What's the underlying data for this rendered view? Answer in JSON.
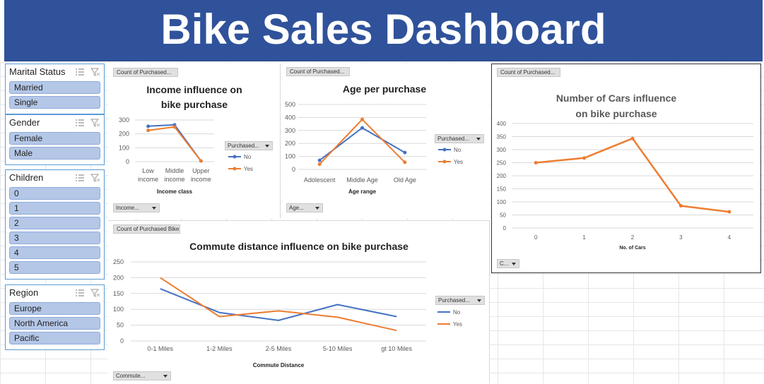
{
  "header": {
    "title": "Bike Sales Dashboard"
  },
  "slicers": [
    {
      "title": "Marital Status",
      "items": [
        "Married",
        "Single"
      ]
    },
    {
      "title": "Gender",
      "items": [
        "Female",
        "Male"
      ]
    },
    {
      "title": "Children",
      "items": [
        "0",
        "1",
        "2",
        "3",
        "4",
        "5"
      ]
    },
    {
      "title": "Region",
      "items": [
        "Europe",
        "North America",
        "Pacific"
      ]
    }
  ],
  "colors": {
    "header": "#30529b",
    "no": "#4472c4",
    "yes": "#ed7d31",
    "slicer_item": "#b4c7e7"
  },
  "charts": {
    "income": {
      "field_button": "Count of Purchased...",
      "axis_button": "Income...",
      "legend_button": "Purchased..."
    },
    "age": {
      "field_button": "Count of Purchased...",
      "axis_button": "Age...",
      "legend_button": "Purchased..."
    },
    "cars": {
      "field_button": "Count of Purchased...",
      "axis_button": "C..."
    },
    "commute": {
      "field_button": "Count of Purchased Bike",
      "axis_button": "Commute...",
      "legend_button": "Purchased..."
    }
  },
  "chart_data": [
    {
      "id": "income",
      "type": "line",
      "title": "Income influence on bike purchase",
      "xlabel": "Income class",
      "ylabel": "",
      "categories": [
        "Low income",
        "Middle income",
        "Upper income"
      ],
      "ylim": [
        0,
        300
      ],
      "yticks": [
        0,
        100,
        200,
        300
      ],
      "series": [
        {
          "name": "No",
          "values": [
            255,
            265,
            5
          ]
        },
        {
          "name": "Yes",
          "values": [
            225,
            250,
            5
          ]
        }
      ],
      "legend_position": "right"
    },
    {
      "id": "age",
      "type": "line",
      "title": "Age per purchase",
      "xlabel": "Age range",
      "ylabel": "",
      "categories": [
        "Adolescent",
        "Middle Age",
        "Old Age"
      ],
      "ylim": [
        0,
        500
      ],
      "yticks": [
        0,
        100,
        200,
        300,
        400,
        500
      ],
      "series": [
        {
          "name": "No",
          "values": [
            70,
            320,
            130
          ]
        },
        {
          "name": "Yes",
          "values": [
            40,
            385,
            55
          ]
        }
      ],
      "legend_position": "right"
    },
    {
      "id": "cars",
      "type": "line",
      "title": "Number of Cars influence on bike purchase",
      "xlabel": "No. of Cars",
      "ylabel": "",
      "categories": [
        "0",
        "1",
        "2",
        "3",
        "4"
      ],
      "ylim": [
        0,
        400
      ],
      "yticks": [
        0,
        50,
        100,
        150,
        200,
        250,
        300,
        350,
        400
      ],
      "series": [
        {
          "values": [
            250,
            268,
            343,
            85,
            62
          ]
        }
      ]
    },
    {
      "id": "commute",
      "type": "line",
      "title": "Commute distance influence on bike purchase",
      "xlabel": "Commute Distance",
      "ylabel": "",
      "categories": [
        "0-1 Miles",
        "1-2 Miles",
        "2-5 Miles",
        "5-10 Miles",
        "gt 10 Miles"
      ],
      "ylim": [
        0,
        250
      ],
      "yticks": [
        0,
        50,
        100,
        150,
        200,
        250
      ],
      "series": [
        {
          "name": "No",
          "values": [
            165,
            90,
            65,
            115,
            77
          ]
        },
        {
          "name": "Yes",
          "values": [
            200,
            77,
            95,
            75,
            33
          ]
        }
      ],
      "legend_position": "right"
    }
  ]
}
